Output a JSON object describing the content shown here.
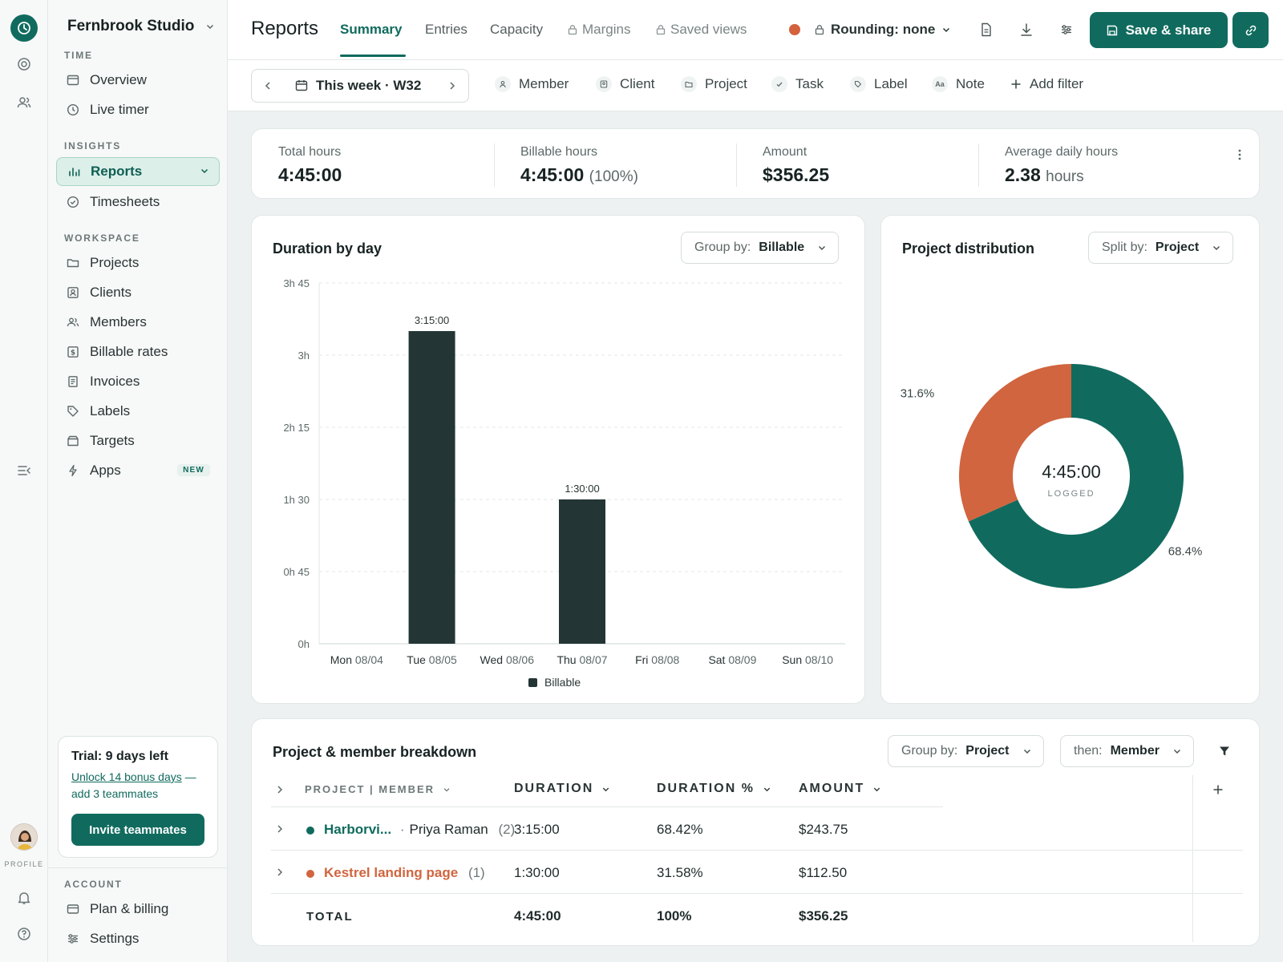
{
  "workspace": {
    "name": "Fernbrook Studio"
  },
  "rail": {
    "profile_label": "PROFILE"
  },
  "sidebar": {
    "sections": {
      "time": "TIME",
      "insights": "INSIGHTS",
      "workspace": "WORKSPACE",
      "account": "ACCOUNT"
    },
    "time_items": [
      {
        "label": "Overview",
        "icon": "calendar-icon"
      },
      {
        "label": "Live timer",
        "icon": "clock-icon"
      }
    ],
    "insight_items": [
      {
        "label": "Reports",
        "icon": "bar-chart-icon",
        "active": true
      },
      {
        "label": "Timesheets",
        "icon": "check-circle-icon"
      }
    ],
    "workspace_items": [
      {
        "label": "Projects",
        "icon": "folder-icon"
      },
      {
        "label": "Clients",
        "icon": "contact-icon"
      },
      {
        "label": "Members",
        "icon": "users-icon"
      },
      {
        "label": "Billable rates",
        "icon": "dollar-icon"
      },
      {
        "label": "Invoices",
        "icon": "invoice-icon"
      },
      {
        "label": "Labels",
        "icon": "tag-icon"
      },
      {
        "label": "Targets",
        "icon": "target-icon"
      },
      {
        "label": "Apps",
        "icon": "bolt-icon",
        "badge": "NEW"
      }
    ],
    "account_items": [
      {
        "label": "Plan & billing",
        "icon": "card-icon"
      },
      {
        "label": "Settings",
        "icon": "sliders-icon"
      }
    ]
  },
  "trial": {
    "title": "Trial: 9 days left",
    "link": "Unlock 14 bonus days",
    "link_suffix": " —",
    "link_rest": "add 3 teammates",
    "button": "Invite teammates"
  },
  "header": {
    "title": "Reports",
    "tabs": [
      {
        "label": "Summary",
        "active": true
      },
      {
        "label": "Entries"
      },
      {
        "label": "Capacity"
      },
      {
        "label": "Margins",
        "locked": true
      },
      {
        "label": "Saved views",
        "locked": true
      }
    ],
    "rounding": "Rounding: none",
    "save_label": "Save & share",
    "accent": "#106b5e"
  },
  "filters": {
    "date_range": "This week · W32",
    "chips": [
      {
        "label": "Member",
        "icon": "person-icon"
      },
      {
        "label": "Client",
        "icon": "contact-icon"
      },
      {
        "label": "Project",
        "icon": "folder-icon"
      },
      {
        "label": "Task",
        "icon": "check-icon"
      },
      {
        "label": "Label",
        "icon": "tag-icon"
      },
      {
        "label": "Note",
        "icon": "text-icon",
        "glyph": "Aa"
      }
    ],
    "add_filter": "Add filter"
  },
  "stats": [
    {
      "label": "Total hours",
      "value": "4:45:00",
      "sub": ""
    },
    {
      "label": "Billable hours",
      "value": "4:45:00",
      "sub": "(100%)"
    },
    {
      "label": "Amount",
      "value": "$356.25",
      "sub": ""
    },
    {
      "label": "Average daily hours",
      "value": "2.38",
      "sub": "hours"
    }
  ],
  "duration_chart": {
    "title": "Duration by day",
    "group_by_label": "Group by:",
    "group_by_value": "Billable"
  },
  "distribution": {
    "title": "Project distribution",
    "split_label": "Split by:",
    "split_value": "Project",
    "center_value": "4:45:00",
    "center_label": "LOGGED"
  },
  "chart_data": [
    {
      "type": "bar",
      "title": "Duration by day",
      "categories": [
        {
          "day": "Mon",
          "date": "08/04"
        },
        {
          "day": "Tue",
          "date": "08/05"
        },
        {
          "day": "Wed",
          "date": "08/06"
        },
        {
          "day": "Thu",
          "date": "08/07"
        },
        {
          "day": "Fri",
          "date": "08/08"
        },
        {
          "day": "Sat",
          "date": "08/09"
        },
        {
          "day": "Sun",
          "date": "08/10"
        }
      ],
      "series": [
        {
          "name": "Billable",
          "color": "#243535",
          "values_hours": [
            0,
            3.25,
            0,
            1.5,
            0,
            0,
            0
          ]
        }
      ],
      "data_labels": [
        "",
        "3:15:00",
        "",
        "1:30:00",
        "",
        "",
        ""
      ],
      "y_ticks": [
        {
          "value": 0,
          "label": "0h"
        },
        {
          "value": 0.75,
          "label": "0h 45"
        },
        {
          "value": 1.5,
          "label": "1h 30"
        },
        {
          "value": 2.25,
          "label": "2h 15"
        },
        {
          "value": 3,
          "label": "3h"
        },
        {
          "value": 3.75,
          "label": "3h 45"
        }
      ],
      "ylim": [
        0,
        3.75
      ],
      "grid": true,
      "legend": "bottom"
    },
    {
      "type": "pie",
      "title": "Project distribution",
      "slices": [
        {
          "name": "Harborview",
          "value": 68.4,
          "label": "68.4%",
          "color": "#106b5e"
        },
        {
          "name": "Kestrel landing page",
          "value": 31.6,
          "label": "31.6%",
          "color": "#d0653f"
        }
      ]
    }
  ],
  "breakdown": {
    "title": "Project & member breakdown",
    "group_by_label": "Group by:",
    "group_by_value": "Project",
    "then_label": "then:",
    "then_value": "Member",
    "columns": {
      "project": "PROJECT | MEMBER",
      "duration": "DURATION",
      "duration_pct": "DURATION %",
      "amount": "AMOUNT"
    },
    "rows": [
      {
        "project": "Harborvi...",
        "member": "Priya Raman",
        "count": "(2)",
        "duration": "3:15:00",
        "pct": "68.42%",
        "amount": "$243.75",
        "color": "#106b5e"
      },
      {
        "project": "Kestrel landing page",
        "member": "",
        "count": "(1)",
        "duration": "1:30:00",
        "pct": "31.58%",
        "amount": "$112.50",
        "color": "#d0653f"
      }
    ],
    "total": {
      "label": "TOTAL",
      "duration": "4:45:00",
      "pct": "100%",
      "amount": "$356.25"
    }
  }
}
